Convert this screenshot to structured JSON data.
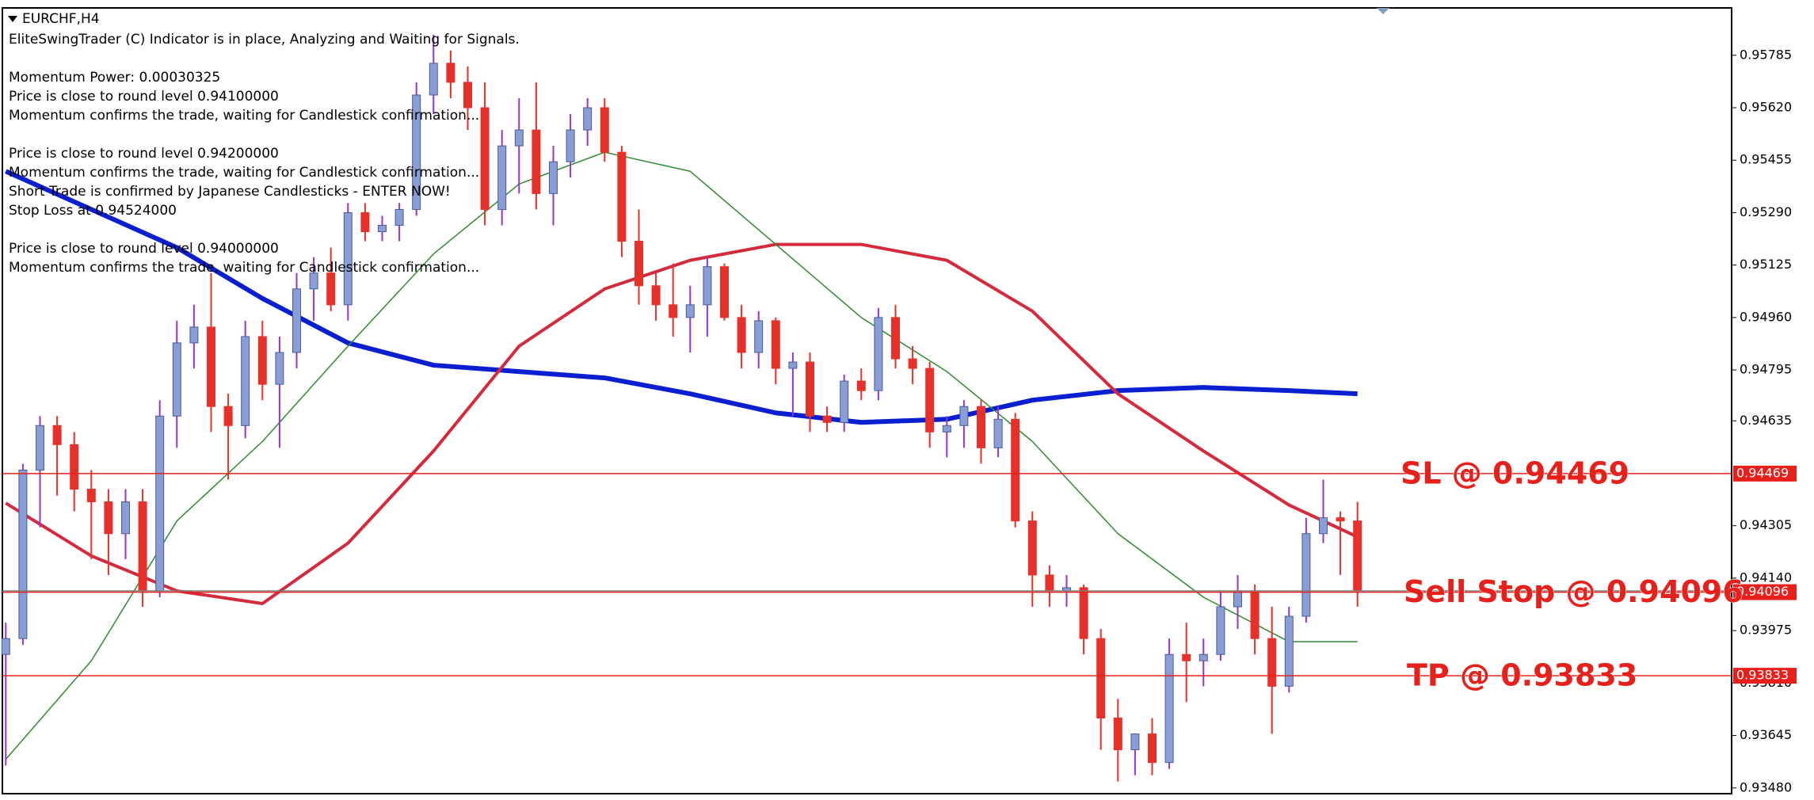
{
  "chart_data": {
    "type": "candlestick",
    "title": "EURCHF,H4",
    "comments": [
      [
        "EliteSwingTrader (C) Indicator is in place, Analyzing and Waiting for Signals."
      ],
      [
        "Momentum Power: 0.00030325",
        "Price is close to round level 0.94100000",
        "Momentum confirms the trade, waiting for Candlestick confirmation..."
      ],
      [
        "Price is close to round level 0.94200000",
        "Momentum confirms the trade, waiting for Candlestick confirmation...",
        "Short Trade is confirmed by Japanese Candlesticks - ENTER NOW!",
        "Stop Loss at 0.94524000"
      ],
      [
        "Price is close to round level 0.94000000",
        "Momentum confirms the trade, waiting for Candlestick confirmation..."
      ]
    ],
    "ylim": [
      0.93462,
      0.95934
    ],
    "yticks": [
      0.95785,
      {
        "value": 0.9562,
        "label": "0.95620"
      },
      0.95455,
      {
        "value": 0.9529,
        "label": "0.95290"
      },
      0.95125,
      {
        "value": 0.9496,
        "label": "0.94960"
      },
      0.94795,
      0.94635,
      0.94305,
      {
        "value": 0.9414,
        "label": "0.94140"
      },
      0.93975,
      {
        "value": 0.9381,
        "label": "0.93810"
      },
      0.93645,
      {
        "value": 0.9348,
        "label": "0.93480"
      }
    ],
    "bull_color": "#8a9ed6",
    "bull_wick": "#9a33cc",
    "bear_color": "#e8302a",
    "ohlc": [
      [
        0.939,
        0.94,
        0.9355,
        0.9395
      ],
      [
        0.9395,
        0.945,
        0.9393,
        0.9448
      ],
      [
        0.9448,
        0.9465,
        0.943,
        0.9462
      ],
      [
        0.9462,
        0.9465,
        0.944,
        0.9456
      ],
      [
        0.9456,
        0.946,
        0.9435,
        0.9442
      ],
      [
        0.9442,
        0.9448,
        0.942,
        0.9438
      ],
      [
        0.9438,
        0.9442,
        0.9415,
        0.9428
      ],
      [
        0.9428,
        0.9442,
        0.942,
        0.9438
      ],
      [
        0.9438,
        0.9442,
        0.9405,
        0.941
      ],
      [
        0.941,
        0.947,
        0.9408,
        0.9465
      ],
      [
        0.9465,
        0.9495,
        0.9455,
        0.9488
      ],
      [
        0.9488,
        0.95,
        0.948,
        0.9493
      ],
      [
        0.9493,
        0.951,
        0.946,
        0.9468
      ],
      [
        0.9468,
        0.9472,
        0.9445,
        0.9462
      ],
      [
        0.9462,
        0.9495,
        0.9458,
        0.949
      ],
      [
        0.949,
        0.9495,
        0.947,
        0.9475
      ],
      [
        0.9475,
        0.949,
        0.9455,
        0.9485
      ],
      [
        0.9485,
        0.951,
        0.948,
        0.9505
      ],
      [
        0.9505,
        0.9515,
        0.9495,
        0.951
      ],
      [
        0.951,
        0.9518,
        0.9498,
        0.95
      ],
      [
        0.95,
        0.9532,
        0.9495,
        0.9529
      ],
      [
        0.9529,
        0.9532,
        0.952,
        0.9523
      ],
      [
        0.9523,
        0.9528,
        0.952,
        0.9525
      ],
      [
        0.9525,
        0.9532,
        0.952,
        0.953
      ],
      [
        0.953,
        0.957,
        0.9528,
        0.9566
      ],
      [
        0.9566,
        0.9585,
        0.956,
        0.9576
      ],
      [
        0.9576,
        0.958,
        0.9565,
        0.957
      ],
      [
        0.957,
        0.9575,
        0.9555,
        0.9562
      ],
      [
        0.9562,
        0.957,
        0.9525,
        0.953
      ],
      [
        0.953,
        0.9555,
        0.9525,
        0.955
      ],
      [
        0.955,
        0.9565,
        0.9535,
        0.9555
      ],
      [
        0.9555,
        0.957,
        0.953,
        0.9535
      ],
      [
        0.9535,
        0.955,
        0.9525,
        0.9545
      ],
      [
        0.9545,
        0.956,
        0.954,
        0.9555
      ],
      [
        0.9555,
        0.9565,
        0.955,
        0.9562
      ],
      [
        0.9562,
        0.9565,
        0.9545,
        0.9548
      ],
      [
        0.9548,
        0.955,
        0.9515,
        0.952
      ],
      [
        0.952,
        0.953,
        0.95,
        0.9506
      ],
      [
        0.9506,
        0.951,
        0.9495,
        0.95
      ],
      [
        0.95,
        0.9513,
        0.949,
        0.9496
      ],
      [
        0.9496,
        0.9506,
        0.9485,
        0.95
      ],
      [
        0.95,
        0.9515,
        0.949,
        0.9512
      ],
      [
        0.9512,
        0.9513,
        0.9495,
        0.9496
      ],
      [
        0.9496,
        0.95,
        0.948,
        0.9485
      ],
      [
        0.9485,
        0.9498,
        0.948,
        0.9495
      ],
      [
        0.9495,
        0.9496,
        0.9475,
        0.948
      ],
      [
        0.948,
        0.9485,
        0.9465,
        0.9482
      ],
      [
        0.9482,
        0.9485,
        0.946,
        0.9465
      ],
      [
        0.9465,
        0.9468,
        0.946,
        0.9463
      ],
      [
        0.9463,
        0.9478,
        0.946,
        0.9476
      ],
      [
        0.9476,
        0.948,
        0.947,
        0.9473
      ],
      [
        0.9473,
        0.9499,
        0.947,
        0.9496
      ],
      [
        0.9496,
        0.95,
        0.948,
        0.9483
      ],
      [
        0.9483,
        0.9487,
        0.9475,
        0.948
      ],
      [
        0.948,
        0.9482,
        0.9455,
        0.946
      ],
      [
        0.946,
        0.9465,
        0.9452,
        0.9462
      ],
      [
        0.9462,
        0.947,
        0.9455,
        0.9468
      ],
      [
        0.9468,
        0.947,
        0.945,
        0.9455
      ],
      [
        0.9455,
        0.9468,
        0.9452,
        0.9464
      ],
      [
        0.9464,
        0.9466,
        0.943,
        0.9432
      ],
      [
        0.9432,
        0.9435,
        0.9405,
        0.9415
      ],
      [
        0.9415,
        0.9418,
        0.9405,
        0.941
      ],
      [
        0.941,
        0.9415,
        0.9405,
        0.9411
      ],
      [
        0.9411,
        0.9412,
        0.939,
        0.9395
      ],
      [
        0.9395,
        0.9398,
        0.936,
        0.937
      ],
      [
        0.937,
        0.9376,
        0.935,
        0.936
      ],
      [
        0.936,
        0.9365,
        0.9352,
        0.9365
      ],
      [
        0.9365,
        0.937,
        0.9352,
        0.9356
      ],
      [
        0.9356,
        0.9395,
        0.9354,
        0.939
      ],
      [
        0.939,
        0.94,
        0.9375,
        0.9388
      ],
      [
        0.9388,
        0.9395,
        0.938,
        0.939
      ],
      [
        0.939,
        0.941,
        0.9388,
        0.9405
      ],
      [
        0.9405,
        0.9415,
        0.9398,
        0.941
      ],
      [
        0.941,
        0.9412,
        0.939,
        0.9395
      ],
      [
        0.9395,
        0.9405,
        0.9365,
        0.938
      ],
      [
        0.938,
        0.9405,
        0.9378,
        0.9402
      ],
      [
        0.9402,
        0.9433,
        0.94,
        0.9428
      ],
      [
        0.9428,
        0.9445,
        0.9425,
        0.9433
      ],
      [
        0.9433,
        0.9435,
        0.9415,
        0.9432
      ],
      [
        0.9432,
        0.9438,
        0.9405,
        0.941
      ]
    ],
    "lines": [
      {
        "color": "#0a1fd0",
        "width": 6,
        "x": [
          0,
          5,
          10,
          15,
          20,
          25,
          30,
          35,
          40,
          45,
          50,
          55,
          60,
          65,
          70,
          75,
          79
        ],
        "values": [
          0.9542,
          0.953,
          0.9518,
          0.9502,
          0.9488,
          0.9481,
          0.9479,
          0.9477,
          0.9472,
          0.9466,
          0.9463,
          0.9464,
          0.947,
          0.9473,
          0.9474,
          0.9473,
          0.9472
        ]
      },
      {
        "color": "#d42a3c",
        "width": 4,
        "x": [
          0,
          5,
          10,
          15,
          20,
          25,
          30,
          35,
          40,
          45,
          50,
          55,
          60,
          65,
          70,
          75,
          79
        ],
        "values": [
          0.94376,
          0.9421,
          0.941,
          0.9406,
          0.9425,
          0.9454,
          0.9487,
          0.9505,
          0.9514,
          0.9519,
          0.9519,
          0.9514,
          0.9498,
          0.9472,
          0.9454,
          0.9437,
          0.9427
        ]
      },
      {
        "color": "#2e8b2e",
        "width": 1.5,
        "x": [
          0,
          5,
          10,
          15,
          20,
          25,
          30,
          35,
          40,
          45,
          50,
          55,
          60,
          65,
          70,
          75,
          79
        ],
        "values": [
          0.9357,
          0.9388,
          0.9432,
          0.9457,
          0.9487,
          0.9516,
          0.9538,
          0.9548,
          0.9542,
          0.9519,
          0.9496,
          0.9479,
          0.9457,
          0.9428,
          0.9408,
          0.9394,
          0.9394
        ]
      }
    ],
    "levels": [
      {
        "value": 0.94469,
        "label": "SL @ 0.94469",
        "color": "#e8201c"
      },
      {
        "value": 0.94096,
        "label": "Sell Stop @ 0.94096",
        "color": "#e8201c"
      },
      {
        "value": 0.93833,
        "label": "TP @ 0.93833",
        "color": "#e8201c"
      }
    ]
  }
}
